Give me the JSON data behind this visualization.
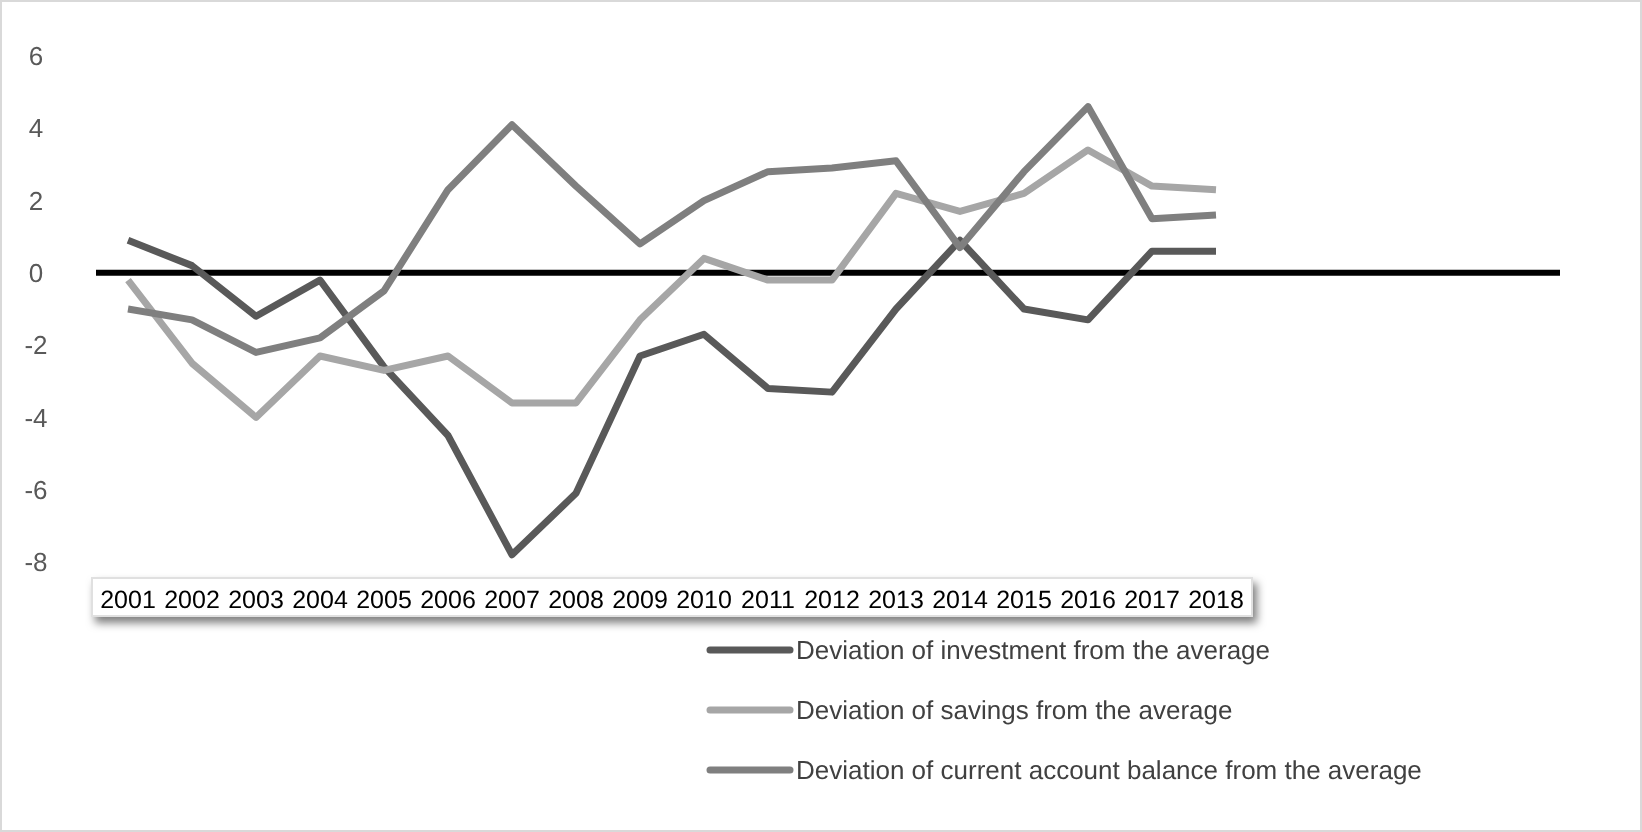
{
  "chart_data": {
    "type": "line",
    "categories": [
      "2001",
      "2002",
      "2003",
      "2004",
      "2005",
      "2006",
      "2007",
      "2008",
      "2009",
      "2010",
      "2011",
      "2012",
      "2013",
      "2014",
      "2015",
      "2016",
      "2017",
      "2018"
    ],
    "series": [
      {
        "name": "Deviation of investment from the average",
        "color": "#595959",
        "values": [
          0.9,
          0.2,
          -1.2,
          -0.2,
          -2.6,
          -4.5,
          -7.8,
          -6.1,
          -2.3,
          -1.7,
          -3.2,
          -3.3,
          -1.0,
          0.9,
          -1.0,
          -1.3,
          0.6,
          0.6
        ]
      },
      {
        "name": "Deviation of savings from the average",
        "color": "#a6a6a6",
        "values": [
          -0.2,
          -2.5,
          -4.0,
          -2.3,
          -2.7,
          -2.3,
          -3.6,
          -3.6,
          -1.3,
          0.4,
          -0.2,
          -0.2,
          2.2,
          1.7,
          2.2,
          3.4,
          2.4,
          2.3
        ]
      },
      {
        "name": "Deviation of current account balance from the average",
        "color": "#7f7f7f",
        "values": [
          -1.0,
          -1.3,
          -2.2,
          -1.8,
          -0.5,
          2.3,
          4.1,
          2.4,
          0.8,
          2.0,
          2.8,
          2.9,
          3.1,
          0.7,
          2.8,
          4.6,
          1.5,
          1.6
        ]
      }
    ],
    "ylim": [
      -8,
      6
    ],
    "yticks": [
      -8,
      -6,
      -4,
      -2,
      0,
      2,
      4,
      6
    ],
    "legend": "bottom right",
    "marker": "none",
    "line_style": "solid"
  }
}
